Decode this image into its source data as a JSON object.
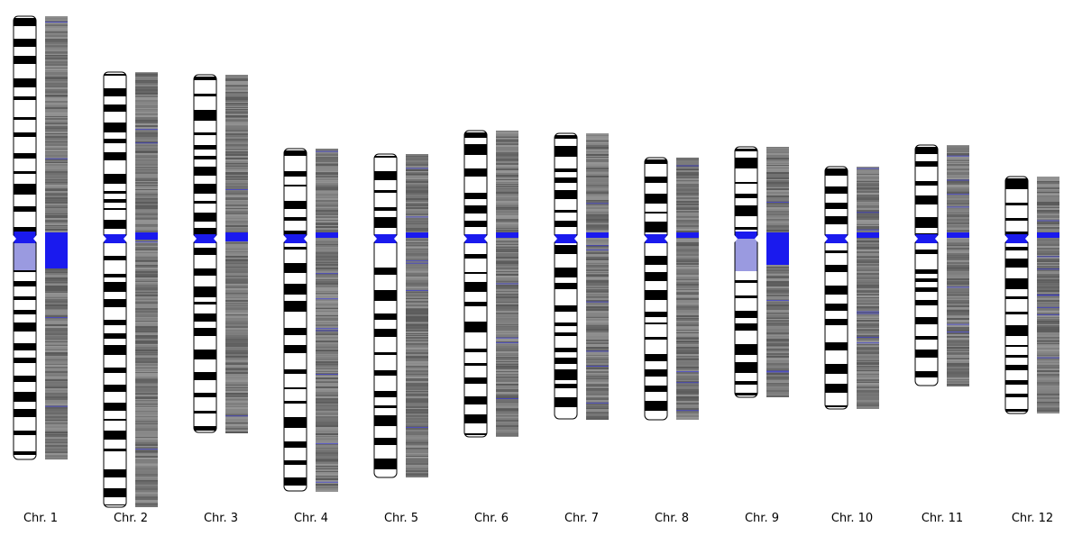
{
  "colors": {
    "band_dark": "#000000",
    "band_light": "#ffffff",
    "centromere": "#1a1aee",
    "heterochromatin": "#9a9ae0",
    "density_base": "#6e6e6e",
    "density_blue_line": "#3a3ad8",
    "outline": "#000000"
  },
  "chromosomes": [
    {
      "label": "Chr. 1"
    },
    {
      "label": "Chr. 2"
    },
    {
      "label": "Chr. 3"
    },
    {
      "label": "Chr. 4"
    },
    {
      "label": "Chr. 5"
    },
    {
      "label": "Chr. 6"
    },
    {
      "label": "Chr. 7"
    },
    {
      "label": "Chr. 8"
    },
    {
      "label": "Chr. 9"
    },
    {
      "label": "Chr. 10"
    },
    {
      "label": "Chr. 11"
    },
    {
      "label": "Chr. 12"
    }
  ]
}
